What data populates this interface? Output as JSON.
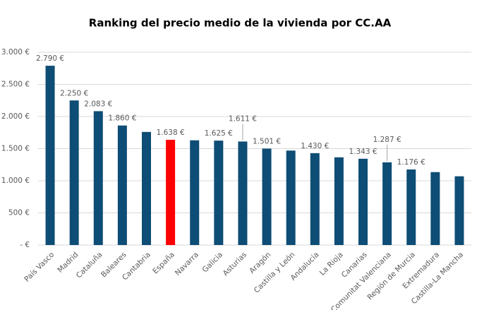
{
  "chart_data": {
    "type": "bar",
    "title": "Ranking del precio medio de la vivienda por CC.AA",
    "categories": [
      "País Vasco",
      "Madrid",
      "Cataluña",
      "Baleares",
      "Cantabria",
      "España",
      "Navarra",
      "Galicia",
      "Asturias",
      "Aragón",
      "Castilla y León",
      "Andalucía",
      "La Rioja",
      "Canarias",
      "Comunitat Valenciana",
      "Región de Murcia",
      "Extremadura",
      "Castilla-La Mancha"
    ],
    "values": [
      2790,
      2250,
      2083,
      1860,
      1760,
      1638,
      1630,
      1625,
      1611,
      1501,
      1470,
      1430,
      1365,
      1343,
      1287,
      1176,
      1135,
      1070
    ],
    "value_labels": [
      "2.790 €",
      "2.250 €",
      "2.083 €",
      "1.860 €",
      null,
      "1.638 €",
      null,
      "1.625 €",
      "1.611 €",
      "1.501 €",
      null,
      "1.430 €",
      null,
      "1.343 €",
      "1.287 €",
      "1.176 €",
      null,
      null
    ],
    "colors": [
      "#0e4d75",
      "#0e4d75",
      "#0e4d75",
      "#0e4d75",
      "#0e4d75",
      "#ff0000",
      "#0e4d75",
      "#0e4d75",
      "#0e4d75",
      "#0e4d75",
      "#0e4d75",
      "#0e4d75",
      "#0e4d75",
      "#0e4d75",
      "#0e4d75",
      "#0e4d75",
      "#0e4d75",
      "#0e4d75"
    ],
    "ylim": [
      0,
      3000
    ],
    "yticks": [
      {
        "value": 0,
        "label": "-   €"
      },
      {
        "value": 500,
        "label": "500 €"
      },
      {
        "value": 1000,
        "label": "1.000 €"
      },
      {
        "value": 1500,
        "label": "1.500 €"
      },
      {
        "value": 2000,
        "label": "2.000 €"
      },
      {
        "value": 2500,
        "label": "2.500 €"
      },
      {
        "value": 3000,
        "label": "3.000 €"
      }
    ],
    "grid": true
  }
}
